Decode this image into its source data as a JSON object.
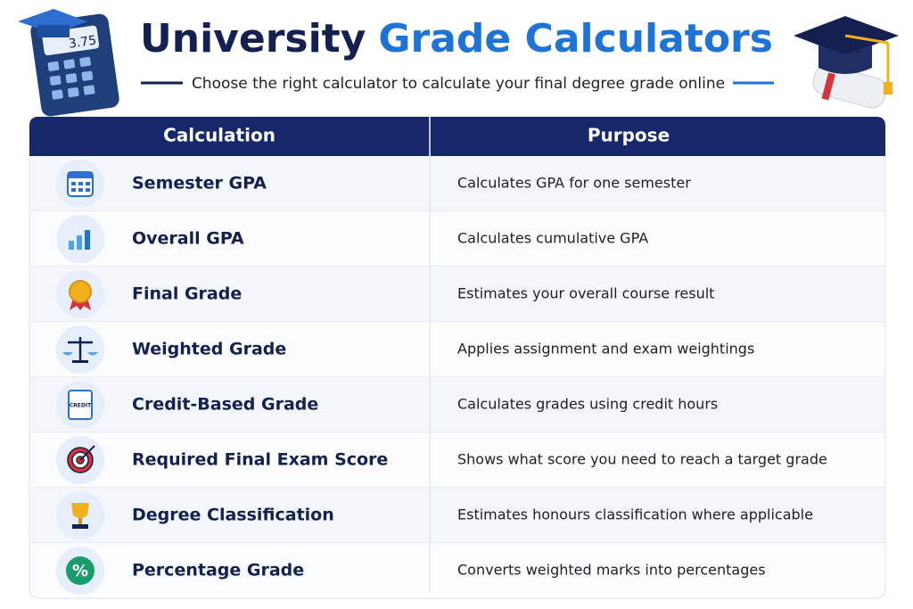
{
  "header": {
    "title_part1": "University",
    "title_part2": "Grade Calculators",
    "subtitle": "Choose the right calculator to calculate your final degree grade online",
    "calculator_display": "3.75"
  },
  "table": {
    "columns": [
      "Calculation",
      "Purpose"
    ],
    "rows": [
      {
        "calculation": "Semester GPA",
        "purpose": "Calculates GPA for one semester"
      },
      {
        "calculation": "Overall GPA",
        "purpose": "Calculates cumulative GPA"
      },
      {
        "calculation": "Final Grade",
        "purpose": "Estimates your overall course result"
      },
      {
        "calculation": "Weighted Grade",
        "purpose": "Applies assignment and exam weightings"
      },
      {
        "calculation": "Credit-Based Grade",
        "purpose": "Calculates grades using credit hours"
      },
      {
        "calculation": "Required Final Exam Score",
        "purpose": "Shows what score you need to reach a target grade"
      },
      {
        "calculation": "Degree Classification",
        "purpose": "Estimates honours classification where applicable"
      },
      {
        "calculation": "Percentage Grade",
        "purpose": "Converts weighted marks into percentages"
      }
    ]
  },
  "icons": {
    "credit": "CREDIT",
    "percent": "%"
  }
}
